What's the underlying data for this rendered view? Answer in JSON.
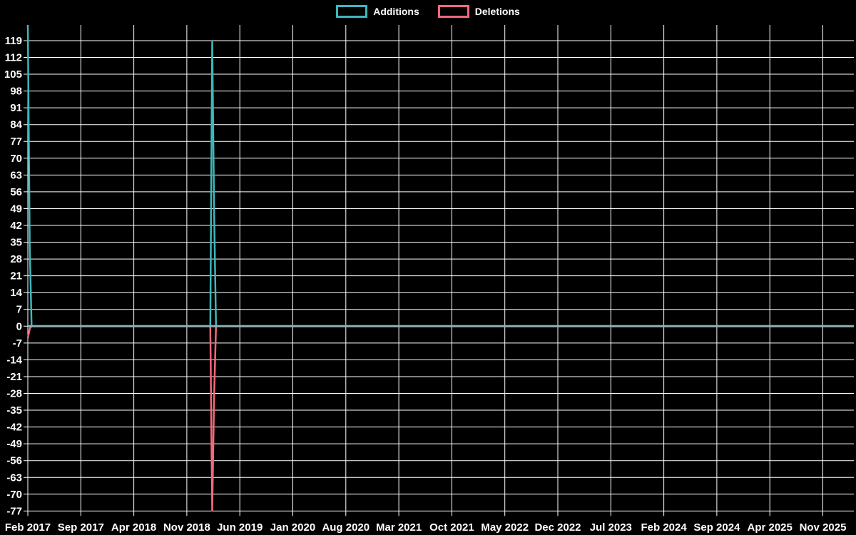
{
  "legend": {
    "items": [
      {
        "label": "Additions",
        "color": "#3cb8bc"
      },
      {
        "label": "Deletions",
        "color": "#f4687e"
      }
    ]
  },
  "chart_data": {
    "type": "line",
    "title": "",
    "legend_position": "top-center",
    "grid": true,
    "background": "#000000",
    "gridline_color": "#ffffff",
    "zero_line_color": "#8fb0b2",
    "text_color": "#ffffff",
    "x": {
      "unit": "months since Feb 2017 (weekly data)",
      "tick_interval_months": 7,
      "tick_labels": [
        "Feb 2017",
        "Sep 2017",
        "Apr 2018",
        "Nov 2018",
        "Jun 2019",
        "Jan 2020",
        "Aug 2020",
        "Mar 2021",
        "Oct 2021",
        "May 2022",
        "Dec 2022",
        "Jul 2023",
        "Feb 2024",
        "Sep 2024",
        "Apr 2025",
        "Nov 2025"
      ]
    },
    "y": {
      "top_tick": 119,
      "bottom_tick": -77,
      "tick_step": 7,
      "plot_top_value": 126,
      "tick_labels": [
        "119",
        "112",
        "105",
        "98",
        "91",
        "84",
        "77",
        "70",
        "63",
        "56",
        "49",
        "42",
        "35",
        "28",
        "21",
        "14",
        "7",
        "0",
        "-7",
        "-14",
        "-21",
        "-28",
        "-35",
        "-42",
        "-49",
        "-56",
        "-63",
        "-70",
        "-77"
      ]
    },
    "series": [
      {
        "name": "Additions",
        "color": "#3cb8bc",
        "baseline": 0,
        "points": [
          [
            0,
            126
          ],
          [
            0.25,
            33
          ],
          [
            0.5,
            0
          ],
          [
            24.1,
            0
          ],
          [
            24.35,
            119
          ],
          [
            24.6,
            49
          ],
          [
            24.85,
            0
          ],
          [
            109.1,
            0
          ]
        ],
        "peaks": [
          {
            "date": "Feb 2017",
            "value": 126,
            "note": "clipped at plot top"
          },
          {
            "date": "Feb 2017 +1wk",
            "value": 33
          },
          {
            "date": "Feb 2019",
            "value": 119
          },
          {
            "date": "Feb 2019 +1wk",
            "value": 49
          }
        ]
      },
      {
        "name": "Deletions",
        "color": "#f4687e",
        "baseline": 0,
        "points": [
          [
            0,
            -5
          ],
          [
            0.25,
            -1
          ],
          [
            0.5,
            0
          ],
          [
            24.1,
            0
          ],
          [
            24.35,
            -77
          ],
          [
            24.6,
            -30
          ],
          [
            24.85,
            0
          ],
          [
            109.1,
            0
          ]
        ],
        "peaks": [
          {
            "date": "Feb 2017",
            "value": -5
          },
          {
            "date": "Feb 2019",
            "value": -77
          },
          {
            "date": "Feb 2019 +1wk",
            "value": -30
          }
        ]
      }
    ]
  }
}
